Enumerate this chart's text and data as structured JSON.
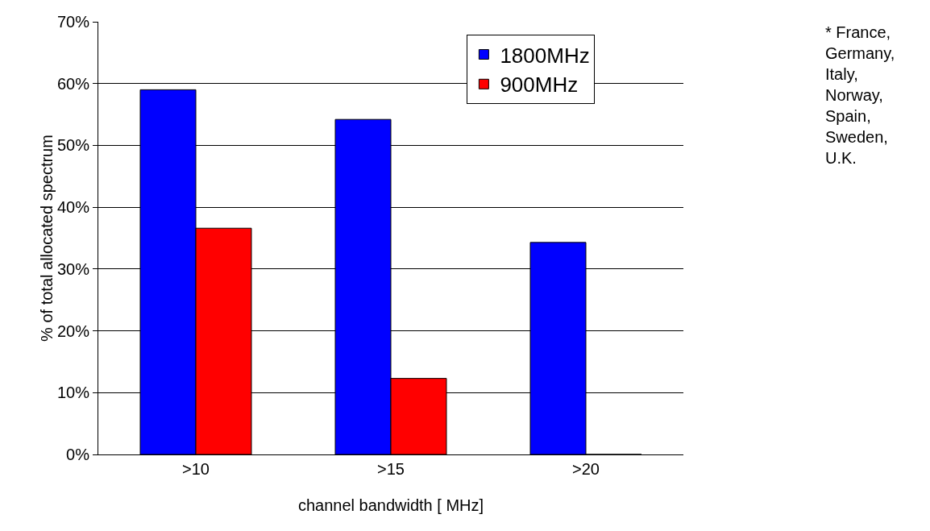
{
  "chart_data": {
    "type": "bar",
    "xlabel": "channel bandwidth [ MHz]",
    "ylabel": "% of total allocated spectrum",
    "categories": [
      ">10",
      ">15",
      ">20"
    ],
    "series": [
      {
        "name": "1800MHz",
        "color": "#0000ff",
        "values": [
          59,
          54.2,
          34.3
        ]
      },
      {
        "name": "900MHz",
        "color": "#ff0000",
        "values": [
          36.6,
          12.3,
          0
        ]
      }
    ],
    "ylim": [
      0,
      70
    ],
    "yticks": [
      {
        "value": 0,
        "label": "0%"
      },
      {
        "value": 10,
        "label": "10%"
      },
      {
        "value": 20,
        "label": "20%"
      },
      {
        "value": 30,
        "label": "30%"
      },
      {
        "value": 40,
        "label": "40%"
      },
      {
        "value": 50,
        "label": "50%"
      },
      {
        "value": 60,
        "label": "60%"
      },
      {
        "value": 70,
        "label": "70%"
      }
    ],
    "grid": "y",
    "legend": "top right",
    "annotations": [
      "* France,\nGermany,\nItaly,\nNorway,\nSpain,\nSweden,\nU.K."
    ]
  }
}
